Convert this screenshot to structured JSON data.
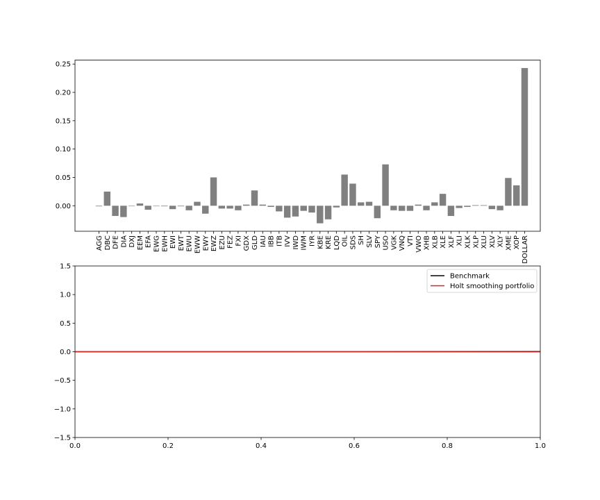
{
  "chart_data": [
    {
      "type": "bar",
      "color": "#808080",
      "categories": [
        "AGG",
        "DBC",
        "DFE",
        "DIA",
        "DXJ",
        "EEM",
        "EFA",
        "EWG",
        "EWH",
        "EWI",
        "EWT",
        "EWU",
        "EWW",
        "EWY",
        "EWZ",
        "EZU",
        "FEZ",
        "FXI",
        "GDX",
        "GLD",
        "IAU",
        "IBB",
        "ITB",
        "IVV",
        "IWD",
        "IWM",
        "IYR",
        "KBE",
        "KRE",
        "LQD",
        "OIL",
        "SDS",
        "SH",
        "SLV",
        "SPY",
        "USO",
        "VGK",
        "VNQ",
        "VTI",
        "VWO",
        "XHB",
        "XLB",
        "XLE",
        "XLF",
        "XLI",
        "XLK",
        "XLP",
        "XLU",
        "XLV",
        "XLY",
        "XME",
        "XOP",
        "DOLLAR"
      ],
      "values": [
        -0.001,
        0.025,
        -0.018,
        -0.02,
        0.0,
        0.004,
        -0.007,
        0.0,
        -0.001,
        -0.006,
        -0.001,
        -0.008,
        0.007,
        -0.014,
        0.05,
        -0.005,
        -0.005,
        -0.008,
        0.002,
        0.027,
        0.002,
        -0.002,
        -0.01,
        -0.021,
        -0.019,
        -0.009,
        -0.012,
        -0.031,
        -0.024,
        -0.003,
        0.055,
        0.039,
        0.006,
        0.007,
        -0.022,
        0.073,
        -0.008,
        -0.009,
        -0.009,
        0.002,
        -0.008,
        0.006,
        0.021,
        -0.018,
        -0.004,
        -0.002,
        0.001,
        0.001,
        -0.006,
        -0.008,
        0.049,
        0.036,
        0.243
      ],
      "ylim": [
        -0.045,
        0.257
      ],
      "yticks": [
        "0.00",
        "0.05",
        "0.10",
        "0.15",
        "0.20",
        "0.25"
      ],
      "ytick_values": [
        0.0,
        0.05,
        0.1,
        0.15,
        0.2,
        0.25
      ]
    },
    {
      "type": "line",
      "xlim": [
        0.0,
        1.0
      ],
      "ylim": [
        -1.5,
        1.5
      ],
      "xticks": [
        "0.0",
        "0.2",
        "0.4",
        "0.6",
        "0.8",
        "1.0"
      ],
      "xtick_values": [
        0.0,
        0.2,
        0.4,
        0.6,
        0.8,
        1.0
      ],
      "yticks": [
        "−1.5",
        "−1.0",
        "−0.5",
        "0.0",
        "0.5",
        "1.0",
        "1.5"
      ],
      "ytick_values": [
        -1.5,
        -1.0,
        -0.5,
        0.0,
        0.5,
        1.0,
        1.5
      ],
      "legend_position": "top-right",
      "series": [
        {
          "name": "Benchmark",
          "color": "#000000",
          "x": [
            0.0,
            1.0
          ],
          "y": [
            0.0,
            0.0
          ]
        },
        {
          "name": "Holt smoothing portfolio",
          "color": "#d62728",
          "x": [
            0.0,
            1.0
          ],
          "y": [
            0.0,
            0.005
          ]
        }
      ]
    }
  ]
}
